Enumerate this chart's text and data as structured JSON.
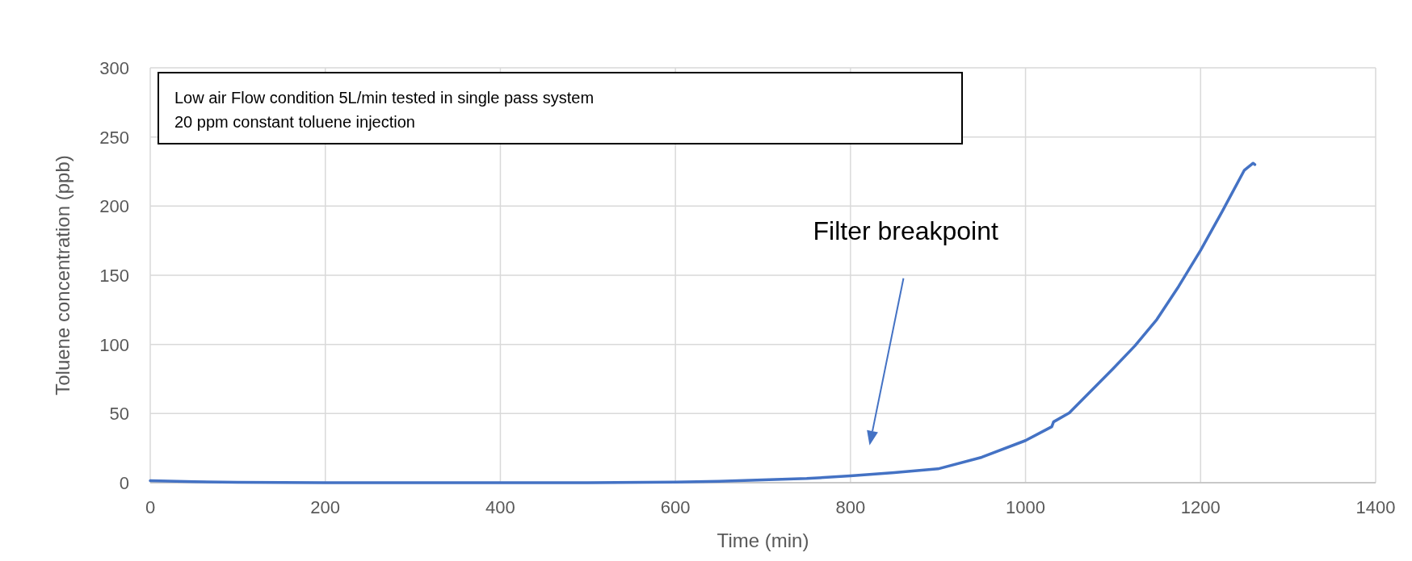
{
  "chart_data": {
    "type": "line",
    "xlabel": "Time (min)",
    "ylabel": "Toluene concentration (ppb)",
    "xlim": [
      0,
      1400
    ],
    "xticks": [
      0,
      200,
      400,
      600,
      800,
      1000,
      1200,
      1400
    ],
    "ylim": [
      0,
      300
    ],
    "yticks": [
      0,
      50,
      100,
      150,
      200,
      250,
      300
    ],
    "grid": true,
    "marker": "none",
    "line_style": "solid",
    "annotations": [
      "Low air Flow condition 5L/min tested in single pass system",
      "20 ppm constant toluene injection",
      "Filter breakpoint"
    ],
    "series": [
      {
        "color": "#4472c4",
        "x": [
          0,
          50,
          100,
          200,
          300,
          400,
          450,
          500,
          600,
          650,
          700,
          750,
          800,
          850,
          900,
          950,
          1000,
          1030,
          1032,
          1050,
          1100,
          1125,
          1150,
          1175,
          1200,
          1225,
          1250,
          1260,
          1262
        ],
        "values": [
          1.5,
          0.7,
          0.3,
          0,
          0,
          0,
          0,
          0,
          0.5,
          1,
          2,
          3,
          5,
          7.3,
          10,
          18.4,
          30.5,
          40.5,
          44,
          50.5,
          82.5,
          99,
          118,
          142,
          168,
          196.5,
          226,
          231,
          230
        ]
      }
    ]
  }
}
